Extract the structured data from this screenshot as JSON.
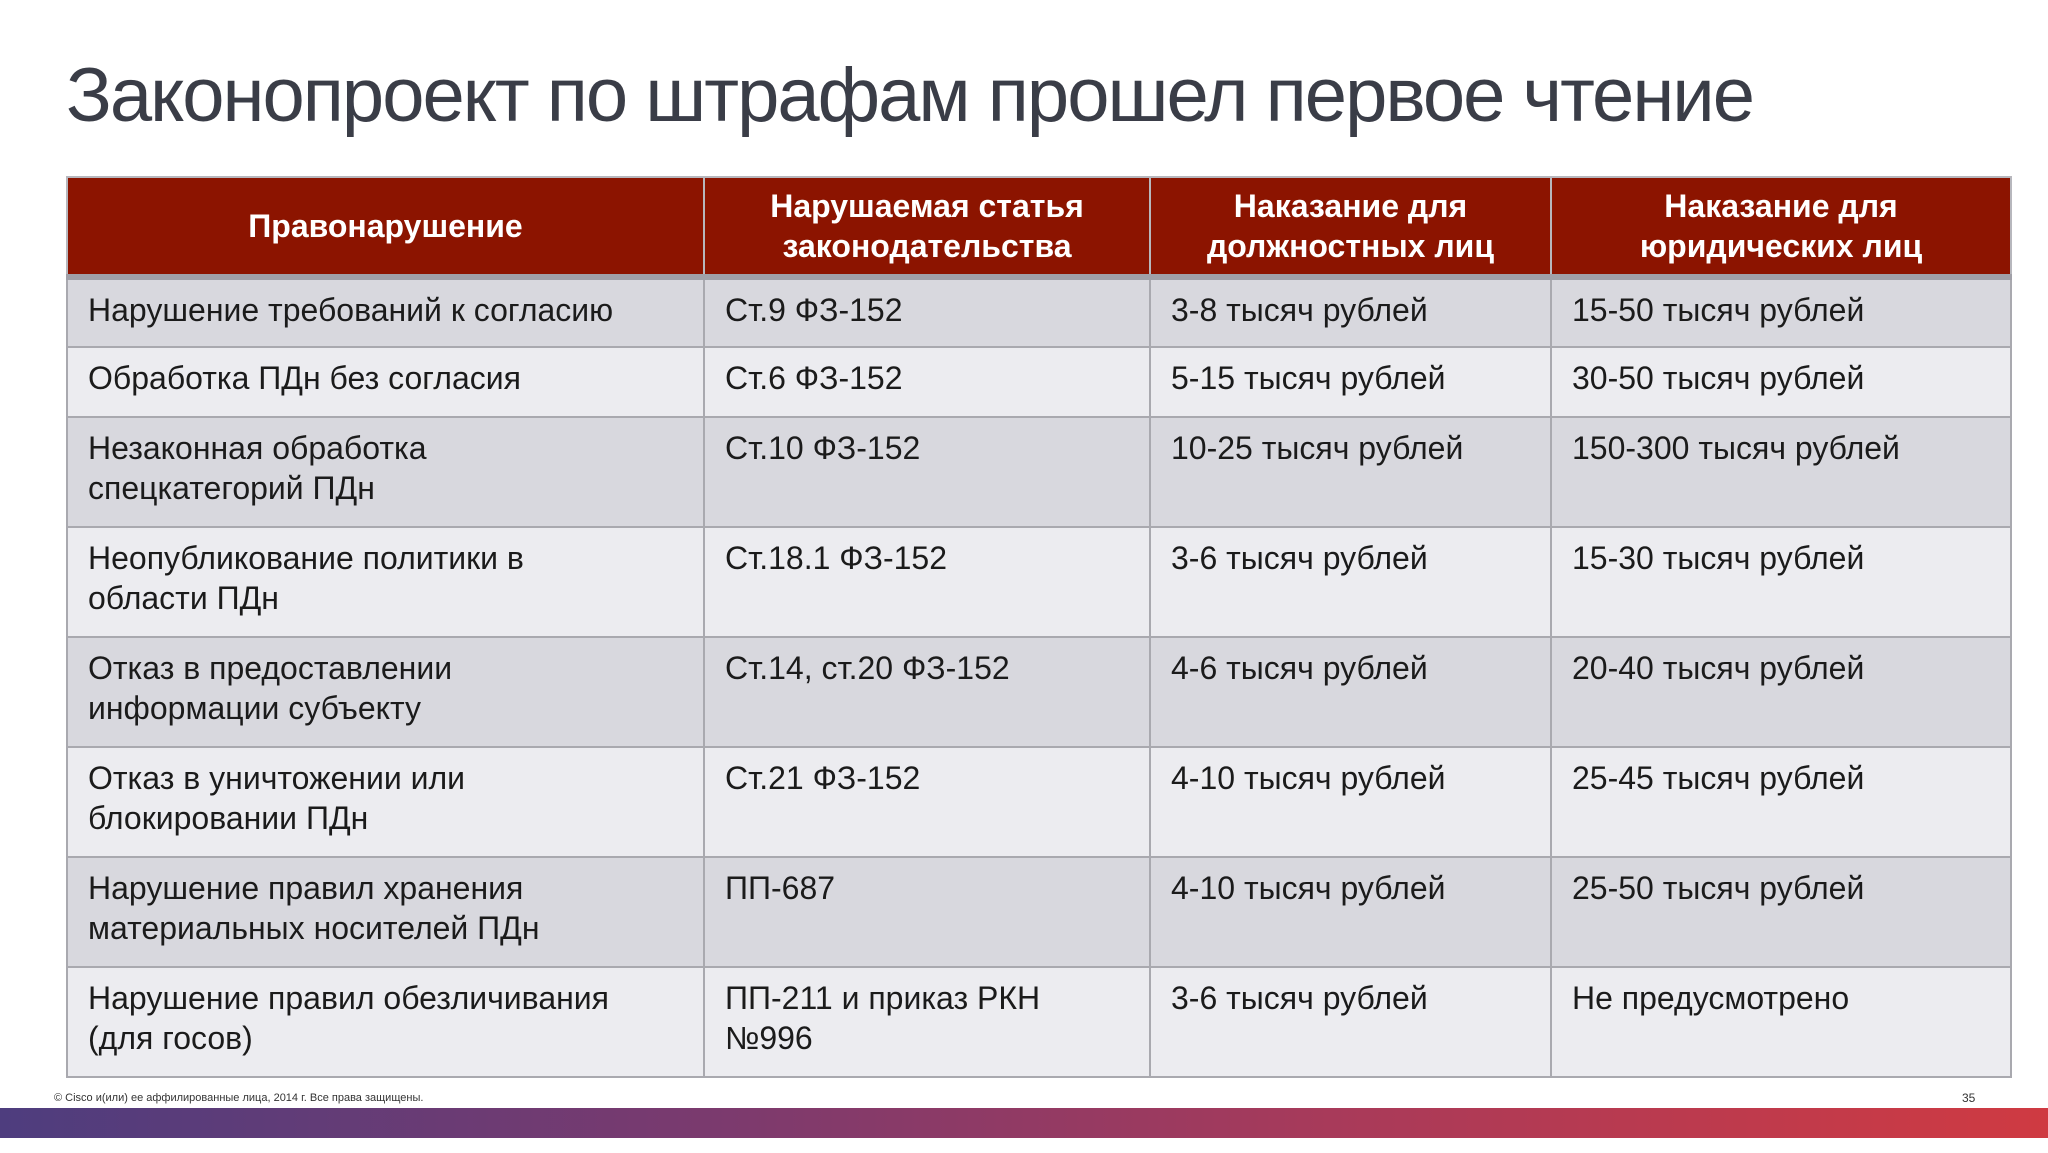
{
  "slide": {
    "title": "Законопроект по штрафам прошел первое чтение",
    "footer_copyright": "© Cisco и(или) ее аффилированные лица, 2014 г. Все права защищены.",
    "page_number": "35",
    "colors": {
      "header_bg": "#8c1400",
      "header_text": "#ffffff",
      "row_odd": "#d8d8de",
      "row_even": "#ececf0",
      "title_text": "#3a3d47"
    }
  },
  "table": {
    "headers": [
      "Правонарушение",
      "Нарушаемая статья\nзаконодательства",
      "Наказание для\nдолжностных лиц",
      "Наказание для\nюридических лиц"
    ],
    "rows": [
      [
        "Нарушение требований к согласию",
        "Ст.9 ФЗ-152",
        "3-8 тысяч рублей",
        "15-50 тысяч рублей"
      ],
      [
        "Обработка ПДн без согласия",
        "Ст.6 ФЗ-152",
        "5-15 тысяч рублей",
        "30-50 тысяч рублей"
      ],
      [
        "Незаконная обработка\nспецкатегорий ПДн",
        "Ст.10 ФЗ-152",
        "10-25 тысяч рублей",
        "150-300 тысяч рублей"
      ],
      [
        "Неопубликование политики в\nобласти ПДн",
        "Ст.18.1 ФЗ-152",
        "3-6 тысяч рублей",
        "15-30 тысяч рублей"
      ],
      [
        "Отказ в предоставлении\nинформации субъекту",
        "Ст.14, ст.20 ФЗ-152",
        "4-6 тысяч рублей",
        "20-40 тысяч рублей"
      ],
      [
        "Отказ в уничтожении или\nблокировании ПДн",
        "Ст.21 ФЗ-152",
        "4-10 тысяч рублей",
        "25-45 тысяч рублей"
      ],
      [
        "Нарушение правил хранения\nматериальных носителей ПДн",
        "ПП-687",
        "4-10 тысяч рублей",
        "25-50 тысяч рублей"
      ],
      [
        "Нарушение правил обезличивания\n(для госов)",
        "ПП-211 и приказ РКН\n№996",
        "3-6 тысяч рублей",
        "Не предусмотрено"
      ]
    ]
  }
}
